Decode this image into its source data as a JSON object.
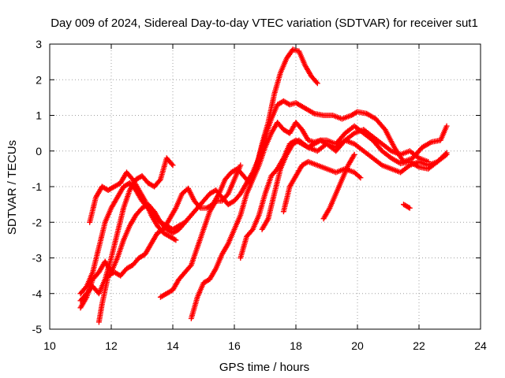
{
  "chart_data": {
    "type": "scatter",
    "title": "Day 009 of 2024, Sidereal Day-to-day VTEC variation (SDTVAR) for receiver sut1",
    "xlabel": "GPS time / hours",
    "ylabel": "SDTVAR / TECUs",
    "xlim": [
      10,
      24
    ],
    "ylim": [
      -5,
      3
    ],
    "xticks": [
      10,
      12,
      14,
      16,
      18,
      20,
      22,
      24
    ],
    "yticks": [
      -5,
      -4,
      -3,
      -2,
      -1,
      0,
      1,
      2,
      3
    ],
    "grid": true,
    "marker": "+",
    "color": "#ff0000",
    "series": [
      {
        "name": "satellite track 1",
        "points": [
          [
            11.3,
            -2.0
          ],
          [
            11.5,
            -1.3
          ],
          [
            11.7,
            -1.0
          ],
          [
            11.9,
            -1.1
          ],
          [
            12.1,
            -1.0
          ],
          [
            12.3,
            -0.9
          ],
          [
            12.5,
            -0.6
          ],
          [
            12.7,
            -0.8
          ],
          [
            12.9,
            -1.1
          ],
          [
            13.1,
            -1.4
          ],
          [
            13.3,
            -1.8
          ],
          [
            13.5,
            -2.1
          ],
          [
            13.7,
            -2.3
          ],
          [
            13.9,
            -2.4
          ],
          [
            14.1,
            -2.5
          ]
        ]
      },
      {
        "name": "satellite track 2",
        "points": [
          [
            11.0,
            -4.0
          ],
          [
            11.2,
            -3.8
          ],
          [
            11.4,
            -3.4
          ],
          [
            11.6,
            -2.7
          ],
          [
            11.8,
            -2.0
          ],
          [
            12.0,
            -1.6
          ],
          [
            12.2,
            -1.3
          ],
          [
            12.4,
            -1.0
          ],
          [
            12.6,
            -0.9
          ],
          [
            12.8,
            -1.1
          ],
          [
            13.0,
            -1.4
          ],
          [
            13.2,
            -1.6
          ],
          [
            13.4,
            -1.8
          ],
          [
            13.6,
            -2.0
          ],
          [
            13.8,
            -2.1
          ],
          [
            14.0,
            -2.2
          ],
          [
            14.2,
            -2.1
          ],
          [
            14.4,
            -2.0
          ],
          [
            14.6,
            -1.8
          ],
          [
            14.8,
            -1.6
          ],
          [
            15.0,
            -1.4
          ],
          [
            15.2,
            -1.2
          ],
          [
            15.4,
            -1.1
          ],
          [
            15.6,
            -1.3
          ],
          [
            15.8,
            -1.5
          ],
          [
            16.0,
            -1.4
          ],
          [
            16.2,
            -1.2
          ],
          [
            16.4,
            -0.9
          ],
          [
            16.6,
            -0.6
          ],
          [
            16.8,
            -0.2
          ],
          [
            17.0,
            0.4
          ],
          [
            17.2,
            0.9
          ],
          [
            17.4,
            1.3
          ],
          [
            17.6,
            1.4
          ],
          [
            17.8,
            1.3
          ],
          [
            18.0,
            1.35
          ],
          [
            18.3,
            1.2
          ],
          [
            18.6,
            1.05
          ],
          [
            18.9,
            1.0
          ],
          [
            19.2,
            1.0
          ],
          [
            19.5,
            0.9
          ],
          [
            19.8,
            1.0
          ],
          [
            20.0,
            1.1
          ],
          [
            20.3,
            1.05
          ],
          [
            20.6,
            0.9
          ],
          [
            20.9,
            0.6
          ],
          [
            21.2,
            0.1
          ],
          [
            21.5,
            -0.3
          ],
          [
            21.8,
            -0.2
          ],
          [
            22.1,
            0.1
          ],
          [
            22.4,
            0.25
          ],
          [
            22.7,
            0.3
          ],
          [
            22.9,
            0.7
          ]
        ]
      },
      {
        "name": "satellite track 3",
        "points": [
          [
            11.0,
            -4.2
          ],
          [
            11.2,
            -4.0
          ],
          [
            11.4,
            -3.8
          ],
          [
            11.6,
            -4.0
          ],
          [
            11.8,
            -3.6
          ],
          [
            12.0,
            -3.0
          ],
          [
            12.2,
            -2.3
          ],
          [
            12.4,
            -1.6
          ],
          [
            12.6,
            -1.1
          ],
          [
            12.8,
            -0.8
          ],
          [
            13.0,
            -0.7
          ],
          [
            13.2,
            -0.9
          ],
          [
            13.4,
            -1.0
          ],
          [
            13.6,
            -0.8
          ],
          [
            13.8,
            -0.2
          ],
          [
            14.0,
            -0.4
          ]
        ]
      },
      {
        "name": "satellite track 4",
        "points": [
          [
            11.0,
            -4.4
          ],
          [
            11.2,
            -4.1
          ],
          [
            11.4,
            -3.6
          ],
          [
            11.6,
            -3.4
          ],
          [
            11.8,
            -3.1
          ],
          [
            12.0,
            -3.4
          ],
          [
            12.2,
            -3.0
          ],
          [
            12.4,
            -2.5
          ],
          [
            12.6,
            -2.1
          ],
          [
            12.8,
            -1.8
          ],
          [
            13.0,
            -1.6
          ],
          [
            13.2,
            -1.5
          ],
          [
            13.4,
            -1.7
          ],
          [
            13.6,
            -2.0
          ],
          [
            13.8,
            -2.2
          ],
          [
            14.0,
            -2.3
          ],
          [
            14.2,
            -2.2
          ],
          [
            14.4,
            -2.0
          ]
        ]
      },
      {
        "name": "satellite track 5",
        "points": [
          [
            11.6,
            -4.8
          ],
          [
            11.7,
            -4.3
          ],
          [
            11.9,
            -3.5
          ],
          [
            12.1,
            -3.4
          ],
          [
            12.3,
            -3.5
          ],
          [
            12.5,
            -3.3
          ],
          [
            12.7,
            -3.2
          ],
          [
            12.9,
            -3.0
          ],
          [
            13.1,
            -2.9
          ],
          [
            13.3,
            -2.6
          ],
          [
            13.5,
            -2.3
          ],
          [
            13.7,
            -2.2
          ],
          [
            13.9,
            -1.9
          ],
          [
            14.1,
            -1.6
          ],
          [
            14.3,
            -1.2
          ],
          [
            14.5,
            -1.05
          ],
          [
            14.7,
            -1.4
          ],
          [
            14.9,
            -1.6
          ],
          [
            15.1,
            -1.6
          ],
          [
            15.3,
            -1.5
          ],
          [
            15.5,
            -1.2
          ],
          [
            15.7,
            -0.8
          ],
          [
            15.9,
            -0.6
          ],
          [
            16.1,
            -0.5
          ],
          [
            16.3,
            -0.7
          ],
          [
            16.5,
            -0.9
          ],
          [
            16.7,
            -0.5
          ],
          [
            16.9,
            0.2
          ],
          [
            17.1,
            0.8
          ],
          [
            17.3,
            1.6
          ],
          [
            17.5,
            2.2
          ],
          [
            17.7,
            2.6
          ],
          [
            17.9,
            2.85
          ],
          [
            18.1,
            2.8
          ],
          [
            18.3,
            2.4
          ],
          [
            18.5,
            2.1
          ],
          [
            18.7,
            1.9
          ]
        ]
      },
      {
        "name": "satellite track 6",
        "points": [
          [
            13.6,
            -4.1
          ],
          [
            13.8,
            -4.0
          ],
          [
            14.0,
            -3.9
          ],
          [
            14.2,
            -3.6
          ],
          [
            14.4,
            -3.4
          ],
          [
            14.6,
            -3.2
          ],
          [
            14.8,
            -2.7
          ],
          [
            15.0,
            -2.2
          ],
          [
            15.2,
            -1.7
          ],
          [
            15.4,
            -1.4
          ],
          [
            15.6,
            -1.4
          ],
          [
            15.8,
            -1.2
          ],
          [
            16.0,
            -0.8
          ],
          [
            16.2,
            -0.4
          ]
        ]
      },
      {
        "name": "satellite track 7",
        "points": [
          [
            14.6,
            -4.7
          ],
          [
            14.8,
            -4.1
          ],
          [
            15.0,
            -3.7
          ],
          [
            15.2,
            -3.6
          ],
          [
            15.4,
            -3.3
          ],
          [
            15.6,
            -2.9
          ],
          [
            15.8,
            -2.6
          ],
          [
            16.0,
            -2.2
          ],
          [
            16.2,
            -1.8
          ],
          [
            16.4,
            -1.2
          ],
          [
            16.6,
            -0.8
          ],
          [
            16.8,
            -0.4
          ],
          [
            17.0,
            0.1
          ],
          [
            17.2,
            0.5
          ],
          [
            17.4,
            0.8
          ],
          [
            17.6,
            0.6
          ],
          [
            17.8,
            0.5
          ],
          [
            18.0,
            0.8
          ],
          [
            18.2,
            0.6
          ],
          [
            18.4,
            0.3
          ],
          [
            18.6,
            0.25
          ],
          [
            18.8,
            0.3
          ],
          [
            19.0,
            0.2
          ],
          [
            19.3,
            0.1
          ],
          [
            19.6,
            0.3
          ],
          [
            19.9,
            0.2
          ],
          [
            20.2,
            0.0
          ],
          [
            20.5,
            -0.2
          ],
          [
            20.8,
            -0.4
          ],
          [
            21.1,
            -0.5
          ],
          [
            21.4,
            -0.6
          ],
          [
            21.7,
            -0.4
          ],
          [
            22.0,
            -0.3
          ],
          [
            22.3,
            -0.4
          ],
          [
            22.6,
            -0.3
          ],
          [
            22.9,
            -0.1
          ]
        ]
      },
      {
        "name": "satellite track 8",
        "points": [
          [
            16.2,
            -3.0
          ],
          [
            16.4,
            -2.4
          ],
          [
            16.6,
            -2.2
          ],
          [
            16.8,
            -1.8
          ],
          [
            17.0,
            -1.2
          ],
          [
            17.2,
            -0.7
          ],
          [
            17.4,
            -0.5
          ],
          [
            17.6,
            -0.2
          ],
          [
            17.8,
            0.2
          ],
          [
            18.0,
            0.3
          ],
          [
            18.2,
            0.2
          ],
          [
            18.4,
            0.1
          ],
          [
            18.6,
            0.2
          ],
          [
            18.8,
            0.3
          ],
          [
            19.0,
            0.3
          ],
          [
            19.3,
            0.2
          ],
          [
            19.6,
            0.5
          ],
          [
            19.9,
            0.7
          ],
          [
            20.2,
            0.5
          ],
          [
            20.5,
            0.3
          ],
          [
            20.8,
            0.0
          ],
          [
            21.1,
            -0.2
          ],
          [
            21.4,
            -0.35
          ],
          [
            21.7,
            -0.3
          ],
          [
            22.0,
            -0.45
          ],
          [
            22.3,
            -0.5
          ],
          [
            22.6,
            -0.3
          ],
          [
            22.9,
            -0.05
          ]
        ]
      },
      {
        "name": "satellite track 9",
        "points": [
          [
            16.9,
            -2.2
          ],
          [
            17.1,
            -1.9
          ],
          [
            17.3,
            -1.2
          ],
          [
            17.5,
            -0.5
          ],
          [
            17.7,
            -0.1
          ],
          [
            17.9,
            0.2
          ],
          [
            18.1,
            0.3
          ],
          [
            18.4,
            0.1
          ],
          [
            18.7,
            0.0
          ],
          [
            19.0,
            0.2
          ],
          [
            19.3,
            0.0
          ],
          [
            19.6,
            0.3
          ],
          [
            19.9,
            0.5
          ],
          [
            20.2,
            0.6
          ],
          [
            20.5,
            0.4
          ],
          [
            20.8,
            0.2
          ],
          [
            21.1,
            0.0
          ],
          [
            21.4,
            -0.1
          ],
          [
            21.7,
            0.0
          ],
          [
            22.0,
            -0.2
          ],
          [
            22.3,
            -0.3
          ]
        ]
      },
      {
        "name": "satellite track 10",
        "points": [
          [
            17.6,
            -1.7
          ],
          [
            17.8,
            -1.0
          ],
          [
            18.0,
            -0.7
          ],
          [
            18.2,
            -0.4
          ],
          [
            18.4,
            -0.3
          ],
          [
            18.7,
            -0.4
          ],
          [
            19.0,
            -0.5
          ],
          [
            19.3,
            -0.6
          ],
          [
            19.6,
            -0.5
          ],
          [
            19.9,
            -0.6
          ],
          [
            20.1,
            -0.75
          ]
        ]
      },
      {
        "name": "satellite track 11",
        "points": [
          [
            18.9,
            -1.9
          ],
          [
            19.1,
            -1.6
          ],
          [
            19.3,
            -1.2
          ],
          [
            19.5,
            -0.8
          ],
          [
            19.7,
            -0.4
          ],
          [
            19.9,
            -0.1
          ]
        ]
      },
      {
        "name": "satellite track 12",
        "points": [
          [
            21.5,
            -1.5
          ],
          [
            21.7,
            -1.6
          ]
        ]
      }
    ]
  }
}
